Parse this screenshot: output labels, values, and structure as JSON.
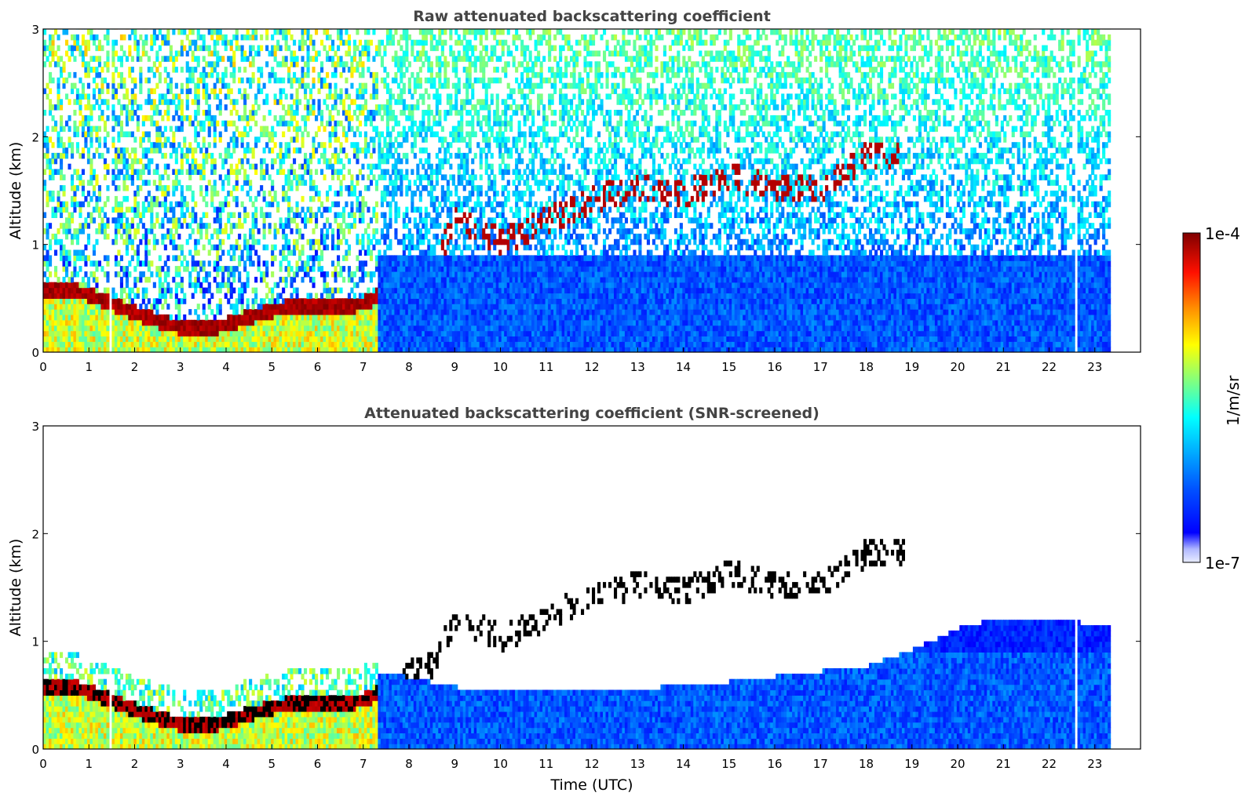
{
  "chart_data": [
    {
      "type": "heatmap",
      "title": "Raw attenuated backscattering coefficient",
      "xlabel": "",
      "ylabel": "Altitude (km)",
      "xlim": [
        0,
        24
      ],
      "ylim": [
        0,
        3
      ],
      "x_ticks": [
        "0",
        "1",
        "2",
        "3",
        "4",
        "5",
        "6",
        "7",
        "8",
        "9",
        "10",
        "11",
        "12",
        "13",
        "14",
        "15",
        "16",
        "17",
        "18",
        "19",
        "20",
        "21",
        "22",
        "23"
      ],
      "y_ticks": [
        "0",
        "1",
        "2",
        "3"
      ],
      "data_end_hour": 23.3,
      "gaps_hour": [
        [
          1.42,
          1.5
        ],
        [
          22.5,
          22.6
        ]
      ],
      "boundary_layer_top_km": [
        {
          "t": 0.0,
          "z": 0.55
        },
        {
          "t": 0.5,
          "z": 0.58
        },
        {
          "t": 1.0,
          "z": 0.52
        },
        {
          "t": 1.4,
          "z": 0.45
        },
        {
          "t": 1.6,
          "z": 0.42
        },
        {
          "t": 2.0,
          "z": 0.35
        },
        {
          "t": 2.5,
          "z": 0.28
        },
        {
          "t": 3.0,
          "z": 0.22
        },
        {
          "t": 3.5,
          "z": 0.2
        },
        {
          "t": 4.0,
          "z": 0.25
        },
        {
          "t": 4.5,
          "z": 0.32
        },
        {
          "t": 5.0,
          "z": 0.38
        },
        {
          "t": 5.5,
          "z": 0.42
        },
        {
          "t": 6.0,
          "z": 0.42
        },
        {
          "t": 6.5,
          "z": 0.4
        },
        {
          "t": 7.0,
          "z": 0.45
        },
        {
          "t": 7.5,
          "z": 0.55
        },
        {
          "t": 8.0,
          "z": 0.7
        },
        {
          "t": 8.5,
          "z": 0.75
        },
        {
          "t": 9.0,
          "z": 1.2
        },
        {
          "t": 10.0,
          "z": 1.0
        },
        {
          "t": 11.0,
          "z": 1.2
        },
        {
          "t": 12.0,
          "z": 1.4
        },
        {
          "t": 13.0,
          "z": 1.5
        },
        {
          "t": 14.0,
          "z": 1.45
        },
        {
          "t": 15.0,
          "z": 1.6
        },
        {
          "t": 16.0,
          "z": 1.5
        },
        {
          "t": 17.0,
          "z": 1.5
        },
        {
          "t": 18.0,
          "z": 1.8
        }
      ]
    },
    {
      "type": "heatmap",
      "title": "Attenuated backscattering coefficient (SNR-screened)",
      "xlabel": "Time (UTC)",
      "ylabel": "Altitude (km)",
      "xlim": [
        0,
        24
      ],
      "ylim": [
        0,
        3
      ],
      "x_ticks": [
        "0",
        "1",
        "2",
        "3",
        "4",
        "5",
        "6",
        "7",
        "8",
        "9",
        "10",
        "11",
        "12",
        "13",
        "14",
        "15",
        "16",
        "17",
        "18",
        "19",
        "20",
        "21",
        "22",
        "23"
      ],
      "y_ticks": [
        "0",
        "1",
        "2",
        "3"
      ],
      "data_end_hour": 23.3,
      "screened_max_altitude_km": [
        {
          "t": 7.3,
          "z": 0.7
        },
        {
          "t": 9.0,
          "z": 0.55
        },
        {
          "t": 12.0,
          "z": 0.5
        },
        {
          "t": 15.0,
          "z": 0.6
        },
        {
          "t": 18.0,
          "z": 0.75
        },
        {
          "t": 19.0,
          "z": 0.9
        },
        {
          "t": 20.0,
          "z": 1.1
        },
        {
          "t": 21.0,
          "z": 1.2
        },
        {
          "t": 22.0,
          "z": 1.2
        },
        {
          "t": 23.3,
          "z": 1.1
        }
      ]
    }
  ],
  "colorbar": {
    "label": "1/m/sr",
    "max_label": "1e-4",
    "min_label": "1e-7",
    "colormap": "jet",
    "colors": [
      "#00007f",
      "#0000ff",
      "#007fff",
      "#00ffff",
      "#7fff7f",
      "#ffff00",
      "#ff7f00",
      "#ff0000",
      "#7f0000"
    ]
  }
}
